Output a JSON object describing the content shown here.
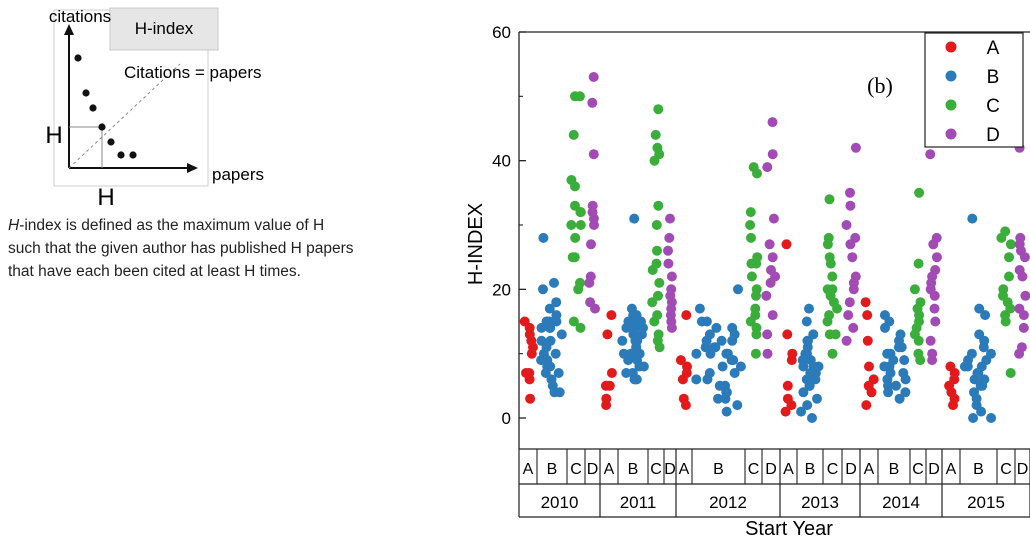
{
  "inset": {
    "y_axis_label": "citations",
    "x_axis_label": "papers",
    "badge": "H-index",
    "diagonal_label": "Citations = papers",
    "h_left": "H",
    "h_bottom": "H",
    "definition_term": "H",
    "definition_rest_1": "-index is defined as the maximum  value of H",
    "definition_line_2": "such that the given author has published  H papers",
    "definition_line_3": "that have each been cited at least H times."
  },
  "chart_data": {
    "type": "scatter",
    "panel_label": "(b)",
    "ylabel": "H-INDEX",
    "xlabel": "Start Year",
    "ylim": [
      0,
      60
    ],
    "yticks": [
      0,
      20,
      40,
      60
    ],
    "groups": [
      "2010",
      "2011",
      "2012",
      "2013",
      "2014",
      "2015"
    ],
    "subcategories": [
      "A",
      "B",
      "C",
      "D"
    ],
    "legend": [
      "A",
      "B",
      "C",
      "D"
    ],
    "legend_position": "top-right",
    "colors": {
      "A": "#e31a1c",
      "B": "#2b7bba",
      "C": "#3aad3a",
      "D": "#a24bb4"
    },
    "series": [
      {
        "name": "A",
        "points": [
          [
            "2010",
            [
              6,
              7,
              7,
              11,
              13,
              14,
              15,
              10,
              3,
              12
            ]
          ],
          [
            "2011",
            [
              16,
              13,
              7,
              5,
              5,
              3,
              2
            ]
          ],
          [
            "2012",
            [
              16,
              8,
              7,
              9,
              3,
              2,
              6
            ]
          ],
          [
            "2013",
            [
              27,
              13,
              10,
              9,
              5,
              3,
              2,
              1
            ]
          ],
          [
            "2014",
            [
              18,
              16,
              12,
              8,
              6,
              5,
              4,
              2
            ]
          ],
          [
            "2015",
            [
              8,
              7,
              6,
              5,
              4,
              3,
              2
            ]
          ]
        ]
      },
      {
        "name": "B",
        "points": [
          [
            "2010",
            [
              28,
              21,
              20,
              18,
              17,
              16,
              15,
              15,
              14,
              14,
              13,
              12,
              12,
              11,
              10,
              10,
              9,
              9,
              8,
              8,
              7,
              7,
              6,
              5,
              4,
              4,
              15,
              14
            ]
          ],
          [
            "2011",
            [
              31,
              17,
              16,
              16,
              15,
              15,
              14,
              14,
              13,
              13,
              12,
              12,
              11,
              11,
              10,
              10,
              9,
              9,
              8,
              8,
              7,
              7,
              6,
              6,
              15,
              14,
              12,
              10
            ]
          ],
          [
            "2012",
            [
              20,
              17,
              15,
              14,
              14,
              13,
              13,
              12,
              12,
              11,
              11,
              10,
              10,
              10,
              9,
              9,
              8,
              8,
              7,
              7,
              6,
              6,
              5,
              5,
              4,
              4,
              3,
              3,
              2,
              1,
              15,
              12,
              11,
              10
            ]
          ],
          [
            "2013",
            [
              17,
              15,
              13,
              12,
              11,
              10,
              10,
              9,
              9,
              8,
              8,
              7,
              7,
              6,
              6,
              5,
              5,
              4,
              3,
              2,
              1,
              0,
              12,
              9,
              8
            ]
          ],
          [
            "2014",
            [
              16,
              14,
              13,
              12,
              11,
              10,
              10,
              9,
              9,
              8,
              8,
              7,
              7,
              6,
              6,
              5,
              5,
              4,
              4,
              3,
              15,
              11
            ]
          ],
          [
            "2015",
            [
              31,
              17,
              16,
              13,
              12,
              11,
              10,
              9,
              9,
              8,
              8,
              7,
              7,
              6,
              6,
              5,
              5,
              4,
              3,
              2,
              1,
              0,
              0,
              10,
              8
            ]
          ]
        ]
      },
      {
        "name": "C",
        "points": [
          [
            "2010",
            [
              50,
              50,
              44,
              37,
              36,
              33,
              32,
              30,
              30,
              28,
              25,
              25,
              21,
              15,
              14,
              20,
              32
            ]
          ],
          [
            "2011",
            [
              48,
              44,
              42,
              41,
              40,
              33,
              30,
              26,
              24,
              23,
              21,
              19,
              18,
              16,
              15,
              13,
              12,
              11
            ]
          ],
          [
            "2012",
            [
              39,
              38,
              32,
              30,
              28,
              25,
              24,
              24,
              22,
              20,
              19,
              17,
              16,
              15,
              14,
              13,
              10
            ]
          ],
          [
            "2013",
            [
              34,
              28,
              27,
              25,
              24,
              22,
              20,
              20,
              19,
              18,
              17,
              16,
              15,
              13,
              13,
              10
            ]
          ],
          [
            "2014",
            [
              35,
              24,
              20,
              18,
              17,
              16,
              15,
              14,
              13,
              12,
              10,
              9
            ]
          ],
          [
            "2015",
            [
              29,
              28,
              27,
              25,
              22,
              20,
              19,
              18,
              17,
              16,
              15,
              7
            ]
          ]
        ]
      },
      {
        "name": "D",
        "points": [
          [
            "2010",
            [
              53,
              49,
              41,
              33,
              32,
              31,
              30,
              27,
              22,
              21,
              18,
              17
            ]
          ],
          [
            "2011",
            [
              31,
              28,
              26,
              24,
              22,
              20,
              19,
              18,
              17,
              16,
              15,
              14
            ]
          ],
          [
            "2012",
            [
              46,
              41,
              39,
              31,
              27,
              25,
              23,
              22,
              21,
              19,
              16,
              13,
              10
            ]
          ],
          [
            "2013",
            [
              42,
              35,
              33,
              30,
              28,
              27,
              25,
              22,
              21,
              20,
              18,
              16,
              14,
              12
            ]
          ],
          [
            "2014",
            [
              41,
              28,
              27,
              25,
              23,
              22,
              21,
              20,
              19,
              17,
              15,
              12,
              10,
              9
            ]
          ],
          [
            "2015",
            [
              42,
              28,
              27,
              26,
              25,
              23,
              22,
              19,
              17,
              16,
              14,
              11,
              10
            ]
          ]
        ]
      }
    ]
  }
}
